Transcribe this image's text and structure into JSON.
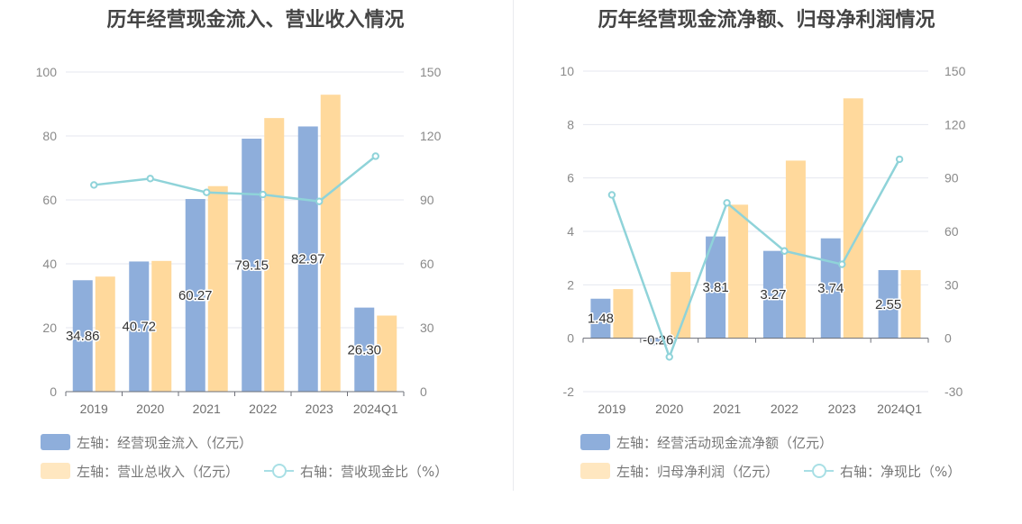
{
  "charts": {
    "left": {
      "title": "历年经营现金流入、营业收入情况",
      "legend": {
        "bar1": "左轴：经营现金流入（亿元）",
        "bar2": "左轴：营业总收入（亿元）",
        "line": "右轴：营收现金比（%）"
      }
    },
    "right": {
      "title": "历年经营现金流净额、归母净利润情况",
      "legend": {
        "bar1": "左轴：经营活动现金流净额（亿元）",
        "bar2": "左轴：归母净利润（亿元）",
        "line": "右轴：净现比（%）"
      }
    }
  },
  "colors": {
    "bar1": "#8eaedb",
    "bar2": "#ffd99c",
    "line": "#8fd3d9",
    "legend_bar2": "#ffe7c0",
    "legend_line": "#a8dfe5"
  },
  "chart_data": [
    {
      "type": "bar",
      "categories": [
        "2019",
        "2020",
        "2021",
        "2022",
        "2023",
        "2024Q1"
      ],
      "series": [
        {
          "name": "左轴：经营现金流入（亿元）",
          "axis": "left",
          "values": [
            34.86,
            40.72,
            60.27,
            79.15,
            82.97,
            26.3
          ],
          "labels": [
            "34.86",
            "40.72",
            "60.27",
            "79.15",
            "82.97",
            "26.30"
          ]
        },
        {
          "name": "左轴：营业总收入（亿元）",
          "axis": "left",
          "values": [
            36.0,
            40.9,
            64.3,
            85.6,
            92.9,
            23.8
          ]
        },
        {
          "name": "右轴：营收现金比（%）",
          "axis": "right",
          "type": "line",
          "values": [
            97,
            100,
            93.5,
            92.5,
            89.3,
            110.5
          ]
        }
      ],
      "left_axis": {
        "min": 0,
        "max": 100,
        "ticks": [
          "0",
          "20",
          "40",
          "60",
          "80",
          "100"
        ]
      },
      "right_axis": {
        "min": 0,
        "max": 150,
        "ticks": [
          "0",
          "30",
          "60",
          "90",
          "120",
          "150"
        ]
      },
      "grid": true,
      "legend_position": "bottom"
    },
    {
      "type": "bar",
      "categories": [
        "2019",
        "2020",
        "2021",
        "2022",
        "2023",
        "2024Q1"
      ],
      "series": [
        {
          "name": "左轴：经营活动现金流净额（亿元）",
          "axis": "left",
          "values": [
            1.48,
            -0.26,
            3.81,
            3.27,
            3.74,
            2.55
          ],
          "labels": [
            "1.48",
            "-0.26",
            "3.81",
            "3.27",
            "3.74",
            "2.55"
          ]
        },
        {
          "name": "左轴：归母净利润（亿元）",
          "axis": "left",
          "values": [
            1.84,
            2.48,
            5.0,
            6.65,
            8.98,
            2.55
          ]
        },
        {
          "name": "右轴：净现比（%）",
          "axis": "right",
          "type": "line",
          "values": [
            80.5,
            -10.5,
            76,
            49,
            41.5,
            100.5
          ]
        }
      ],
      "left_axis": {
        "min": -2,
        "max": 10,
        "ticks": [
          "-2",
          "0",
          "2",
          "4",
          "6",
          "8",
          "10"
        ]
      },
      "right_axis": {
        "min": -30,
        "max": 150,
        "ticks": [
          "-30",
          "0",
          "30",
          "60",
          "90",
          "120",
          "150"
        ]
      },
      "grid": true,
      "legend_position": "bottom"
    }
  ]
}
